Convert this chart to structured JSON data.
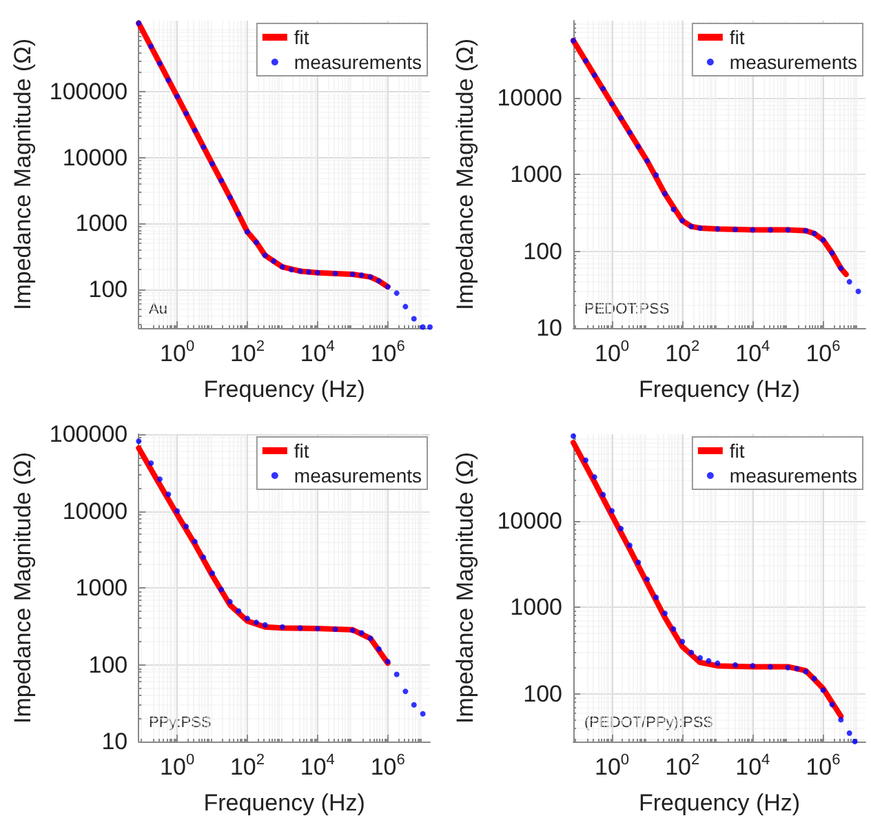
{
  "chart_data": [
    {
      "type": "line",
      "xlabel": "Frequency (Hz)",
      "ylabel": "Impedance Magnitude (Ω)",
      "annotations": [
        "Au"
      ],
      "log": "xy",
      "grid": true,
      "legend": "top right",
      "xlim": [
        0.08,
        16000000
      ],
      "xticks": [
        {
          "value": 1,
          "label": "10$^{0}$"
        },
        {
          "value": 100,
          "label": "10$^{2}$"
        },
        {
          "value": 10000,
          "label": "10$^{4}$"
        },
        {
          "value": 1000000,
          "label": "10$^{6}$"
        }
      ],
      "ylim": [
        26,
        1200000
      ],
      "yticks": [
        100,
        1000,
        10000,
        100000
      ],
      "series": [
        {
          "name": "fit",
          "marker": "none",
          "line_style": "solid",
          "color": "#ff0000",
          "x": [
            0.08,
            0.32,
            1,
            3.2,
            10,
            32,
            100,
            180,
            320,
            560,
            1000,
            3200,
            10000,
            100000,
            320000,
            560000,
            1000000
          ],
          "values": [
            1100000,
            270000,
            85000,
            26000,
            8100,
            2500,
            750,
            520,
            330,
            270,
            220,
            190,
            180,
            170,
            155,
            135,
            110
          ]
        },
        {
          "name": "measurements",
          "type": "scatter",
          "marker": "circle",
          "color": "#0000ff",
          "x": [
            0.08,
            0.18,
            0.32,
            0.56,
            1,
            1.8,
            3.2,
            5.6,
            10,
            18,
            32,
            56,
            100,
            180,
            320,
            560,
            1000,
            1800,
            3200,
            5600,
            10000,
            32000,
            100000,
            180000,
            320000,
            560000,
            1000000,
            1800000,
            3200000,
            5600000,
            10000000,
            16000000
          ],
          "values": [
            1100000,
            490000,
            270000,
            150000,
            85000,
            47000,
            26000,
            14500,
            8100,
            4500,
            2500,
            1400,
            750,
            520,
            330,
            270,
            220,
            200,
            190,
            185,
            180,
            175,
            170,
            165,
            155,
            135,
            110,
            88,
            55,
            36,
            27,
            27
          ]
        }
      ]
    },
    {
      "type": "line",
      "xlabel": "Frequency (Hz)",
      "ylabel": "Impedance Magnitude (Ω)",
      "annotations": [
        "PEDOT:PSS"
      ],
      "log": "xy",
      "grid": true,
      "legend": "top right",
      "xlim": [
        0.08,
        16000000
      ],
      "xticks": [
        {
          "value": 1,
          "label": "10$^{0}$"
        },
        {
          "value": 100,
          "label": "10$^{2}$"
        },
        {
          "value": 10000,
          "label": "10$^{4}$"
        },
        {
          "value": 1000000,
          "label": "10$^{6}$"
        }
      ],
      "ylim": [
        10,
        100000
      ],
      "yticks": [
        10,
        100,
        1000,
        10000
      ],
      "series": [
        {
          "name": "fit",
          "marker": "none",
          "line_style": "solid",
          "color": "#ff0000",
          "x": [
            0.08,
            0.32,
            1,
            3.2,
            10,
            32,
            100,
            180,
            320,
            1000,
            10000,
            100000,
            320000,
            560000,
            1000000,
            1800000,
            3200000,
            4500000
          ],
          "values": [
            55000,
            19500,
            8300,
            3500,
            1500,
            560,
            250,
            210,
            200,
            195,
            190,
            190,
            185,
            170,
            140,
            95,
            60,
            50
          ]
        },
        {
          "name": "measurements",
          "type": "scatter",
          "marker": "circle",
          "color": "#0000ff",
          "x": [
            0.08,
            0.18,
            0.32,
            0.56,
            1,
            1.8,
            3.2,
            5.6,
            10,
            18,
            32,
            56,
            100,
            180,
            320,
            1000,
            3200,
            10000,
            32000,
            100000,
            320000,
            560000,
            1000000,
            1800000,
            3200000,
            5600000,
            10000000
          ],
          "values": [
            55000,
            30000,
            19500,
            13000,
            8300,
            5400,
            3500,
            2300,
            1500,
            980,
            560,
            350,
            250,
            210,
            200,
            195,
            192,
            190,
            190,
            190,
            185,
            170,
            140,
            95,
            60,
            40,
            30
          ]
        }
      ]
    },
    {
      "type": "line",
      "xlabel": "Frequency (Hz)",
      "ylabel": "Impedance Magnitude (Ω)",
      "annotations": [
        "PPy:PSS"
      ],
      "log": "xy",
      "grid": true,
      "legend": "top right",
      "xlim": [
        0.08,
        16000000
      ],
      "xticks": [
        {
          "value": 1,
          "label": "10$^{0}$"
        },
        {
          "value": 100,
          "label": "10$^{2}$"
        },
        {
          "value": 10000,
          "label": "10$^{4}$"
        },
        {
          "value": 1000000,
          "label": "10$^{6}$"
        }
      ],
      "ylim": [
        10,
        100000
      ],
      "yticks": [
        10,
        100,
        1000,
        10000,
        100000
      ],
      "series": [
        {
          "name": "fit",
          "marker": "none",
          "line_style": "solid",
          "color": "#ff0000",
          "x": [
            0.08,
            0.32,
            1,
            3.2,
            10,
            32,
            100,
            320,
            1000,
            10000,
            100000,
            320000,
            1000000
          ],
          "values": [
            66000,
            22000,
            9000,
            3700,
            1450,
            600,
            370,
            310,
            300,
            295,
            285,
            220,
            105
          ]
        },
        {
          "name": "measurements",
          "type": "scatter",
          "marker": "circle",
          "color": "#0000ff",
          "x": [
            0.08,
            0.18,
            0.32,
            0.56,
            1,
            1.8,
            3.2,
            5.6,
            10,
            18,
            32,
            56,
            100,
            180,
            320,
            1000,
            3200,
            10000,
            32000,
            100000,
            180000,
            320000,
            560000,
            1000000,
            1800000,
            3200000,
            5600000,
            10000000
          ],
          "values": [
            81000,
            42000,
            26000,
            16500,
            10000,
            6300,
            4000,
            2500,
            1550,
            950,
            660,
            500,
            400,
            355,
            330,
            310,
            300,
            295,
            290,
            280,
            260,
            220,
            160,
            110,
            75,
            45,
            30,
            23
          ]
        }
      ]
    },
    {
      "type": "line",
      "xlabel": "Frequency (Hz)",
      "ylabel": "Impedance Magnitude (Ω)",
      "annotations": [
        "(PEDOT/PPy):PSS"
      ],
      "log": "xy",
      "grid": true,
      "legend": "top right",
      "xlim": [
        0.08,
        16000000
      ],
      "xticks": [
        {
          "value": 1,
          "label": "10$^{0}$"
        },
        {
          "value": 100,
          "label": "10$^{2}$"
        },
        {
          "value": 10000,
          "label": "10$^{4}$"
        },
        {
          "value": 1000000,
          "label": "10$^{6}$"
        }
      ],
      "ylim": [
        28,
        100000
      ],
      "yticks": [
        100,
        1000,
        10000
      ],
      "series": [
        {
          "name": "fit",
          "marker": "none",
          "line_style": "solid",
          "color": "#ff0000",
          "x": [
            0.08,
            0.32,
            1,
            3.2,
            10,
            32,
            100,
            320,
            1000,
            10000,
            100000,
            320000,
            1000000,
            3200000
          ],
          "values": [
            80000,
            28000,
            11500,
            4700,
            1900,
            760,
            350,
            230,
            210,
            205,
            205,
            185,
            115,
            55
          ]
        },
        {
          "name": "measurements",
          "type": "scatter",
          "marker": "circle",
          "color": "#0000ff",
          "x": [
            0.08,
            0.18,
            0.32,
            0.56,
            1,
            1.8,
            3.2,
            5.6,
            10,
            18,
            32,
            56,
            100,
            180,
            320,
            560,
            1000,
            3200,
            10000,
            32000,
            100000,
            180000,
            320000,
            560000,
            1000000,
            1800000,
            3200000,
            5600000,
            8000000
          ],
          "values": [
            95000,
            50000,
            32000,
            20000,
            13000,
            8100,
            5200,
            3300,
            2100,
            1300,
            850,
            560,
            400,
            300,
            260,
            240,
            225,
            215,
            210,
            205,
            200,
            195,
            180,
            150,
            110,
            75,
            50,
            35,
            28
          ]
        }
      ]
    }
  ]
}
